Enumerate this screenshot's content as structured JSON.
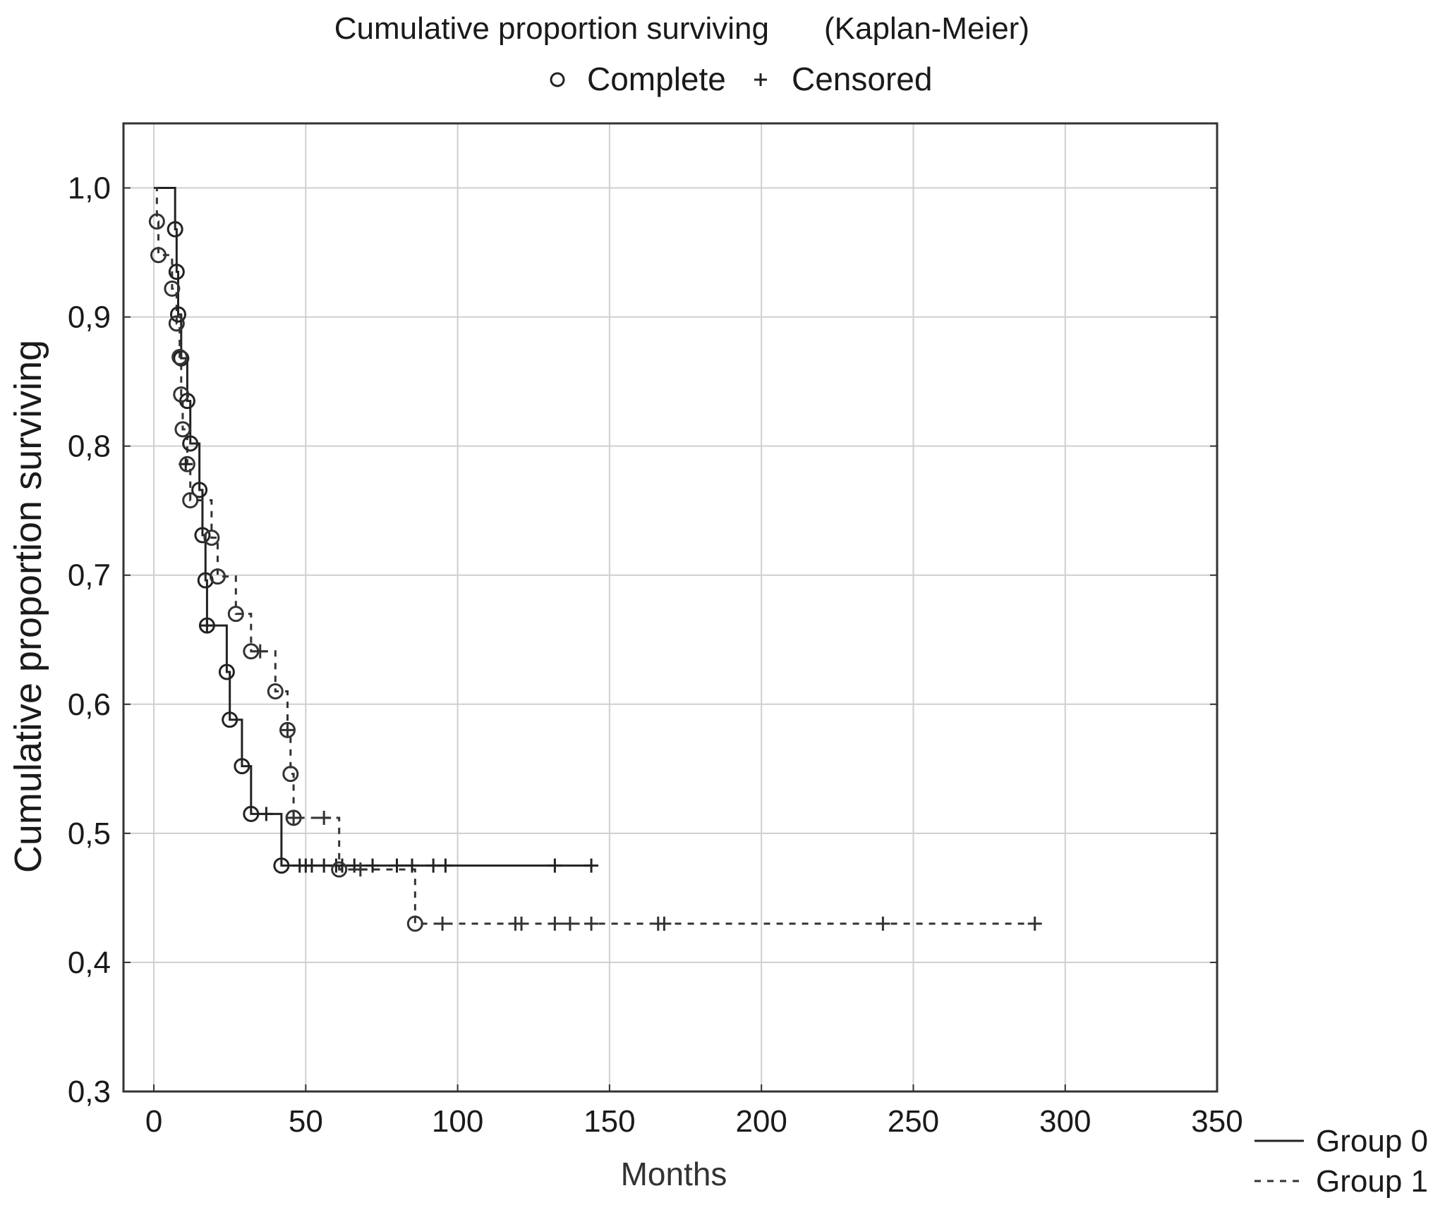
{
  "chart_data": {
    "type": "line",
    "title": "Cumulative proportion surviving",
    "subtitle": "(Kaplan-Meier)",
    "marker_legend": {
      "complete": "Complete",
      "censored": "Censored"
    },
    "xlabel": "Months",
    "ylabel": "Cumulative proportion surviving",
    "xlim": [
      -10,
      350
    ],
    "ylim": [
      0.3,
      1.05
    ],
    "xticks": [
      0,
      50,
      100,
      150,
      200,
      250,
      300,
      350
    ],
    "xtick_labels": [
      "0",
      "50",
      "100",
      "150",
      "200",
      "250",
      "300",
      "350"
    ],
    "yticks": [
      0.3,
      0.4,
      0.5,
      0.6,
      0.7,
      0.8,
      0.9,
      1.0
    ],
    "ytick_labels": [
      "0,3",
      "0,4",
      "0,5",
      "0,6",
      "0,7",
      "0,8",
      "0,9",
      "1,0"
    ],
    "grid": true,
    "legend_position": "bottom-right outside",
    "series": [
      {
        "name": "Group 0",
        "line_style": "solid",
        "color": "#222222",
        "steps": [
          [
            0,
            1.0
          ],
          [
            7,
            0.968
          ],
          [
            7.5,
            0.935
          ],
          [
            8,
            0.902
          ],
          [
            9,
            0.868
          ],
          [
            11,
            0.835
          ],
          [
            12,
            0.802
          ],
          [
            15,
            0.766
          ],
          [
            16,
            0.731
          ],
          [
            17,
            0.696
          ],
          [
            17.5,
            0.661
          ],
          [
            24,
            0.625
          ],
          [
            25,
            0.588
          ],
          [
            29,
            0.552
          ],
          [
            32,
            0.515
          ],
          [
            42,
            0.475
          ],
          [
            144,
            0.475
          ]
        ],
        "complete": [
          [
            7,
            0.968
          ],
          [
            7.5,
            0.935
          ],
          [
            8,
            0.902
          ],
          [
            9,
            0.868
          ],
          [
            11,
            0.835
          ],
          [
            12,
            0.802
          ],
          [
            15,
            0.766
          ],
          [
            16,
            0.731
          ],
          [
            17,
            0.696
          ],
          [
            17.5,
            0.661
          ],
          [
            24,
            0.625
          ],
          [
            25,
            0.588
          ],
          [
            29,
            0.552
          ],
          [
            32,
            0.515
          ],
          [
            42,
            0.475
          ]
        ],
        "censored": [
          [
            10.5,
            0.786
          ],
          [
            17.5,
            0.661
          ],
          [
            37,
            0.515
          ],
          [
            48,
            0.475
          ],
          [
            50,
            0.475
          ],
          [
            52,
            0.475
          ],
          [
            56,
            0.475
          ],
          [
            60,
            0.475
          ],
          [
            62,
            0.475
          ],
          [
            66,
            0.475
          ],
          [
            72,
            0.475
          ],
          [
            80,
            0.475
          ],
          [
            85,
            0.475
          ],
          [
            92,
            0.475
          ],
          [
            96,
            0.475
          ],
          [
            132,
            0.475
          ],
          [
            144,
            0.475
          ]
        ]
      },
      {
        "name": "Group 1",
        "line_style": "dashed",
        "color": "#333333",
        "steps": [
          [
            0,
            1.0
          ],
          [
            1,
            0.974
          ],
          [
            1.5,
            0.948
          ],
          [
            6,
            0.922
          ],
          [
            7.5,
            0.895
          ],
          [
            8.5,
            0.869
          ],
          [
            9,
            0.84
          ],
          [
            9.5,
            0.813
          ],
          [
            11,
            0.786
          ],
          [
            12,
            0.758
          ],
          [
            19,
            0.729
          ],
          [
            21,
            0.699
          ],
          [
            27,
            0.67
          ],
          [
            32,
            0.641
          ],
          [
            40,
            0.61
          ],
          [
            44,
            0.58
          ],
          [
            45,
            0.546
          ],
          [
            46,
            0.512
          ],
          [
            61,
            0.472
          ],
          [
            86,
            0.43
          ],
          [
            290,
            0.43
          ]
        ],
        "complete": [
          [
            1,
            0.974
          ],
          [
            1.5,
            0.948
          ],
          [
            6,
            0.922
          ],
          [
            7.5,
            0.895
          ],
          [
            8.5,
            0.869
          ],
          [
            9,
            0.84
          ],
          [
            9.5,
            0.813
          ],
          [
            11,
            0.786
          ],
          [
            12,
            0.758
          ],
          [
            19,
            0.729
          ],
          [
            21,
            0.699
          ],
          [
            27,
            0.67
          ],
          [
            32,
            0.641
          ],
          [
            40,
            0.61
          ],
          [
            44,
            0.58
          ],
          [
            45,
            0.546
          ],
          [
            46,
            0.512
          ],
          [
            61,
            0.472
          ],
          [
            86,
            0.43
          ]
        ],
        "censored": [
          [
            35,
            0.641
          ],
          [
            44,
            0.58
          ],
          [
            46,
            0.512
          ],
          [
            56,
            0.512
          ],
          [
            68,
            0.472
          ],
          [
            95,
            0.43
          ],
          [
            119,
            0.43
          ],
          [
            121,
            0.43
          ],
          [
            132,
            0.43
          ],
          [
            137,
            0.43
          ],
          [
            144,
            0.43
          ],
          [
            166,
            0.43
          ],
          [
            168,
            0.43
          ],
          [
            240,
            0.43
          ],
          [
            290,
            0.43
          ]
        ]
      }
    ]
  }
}
